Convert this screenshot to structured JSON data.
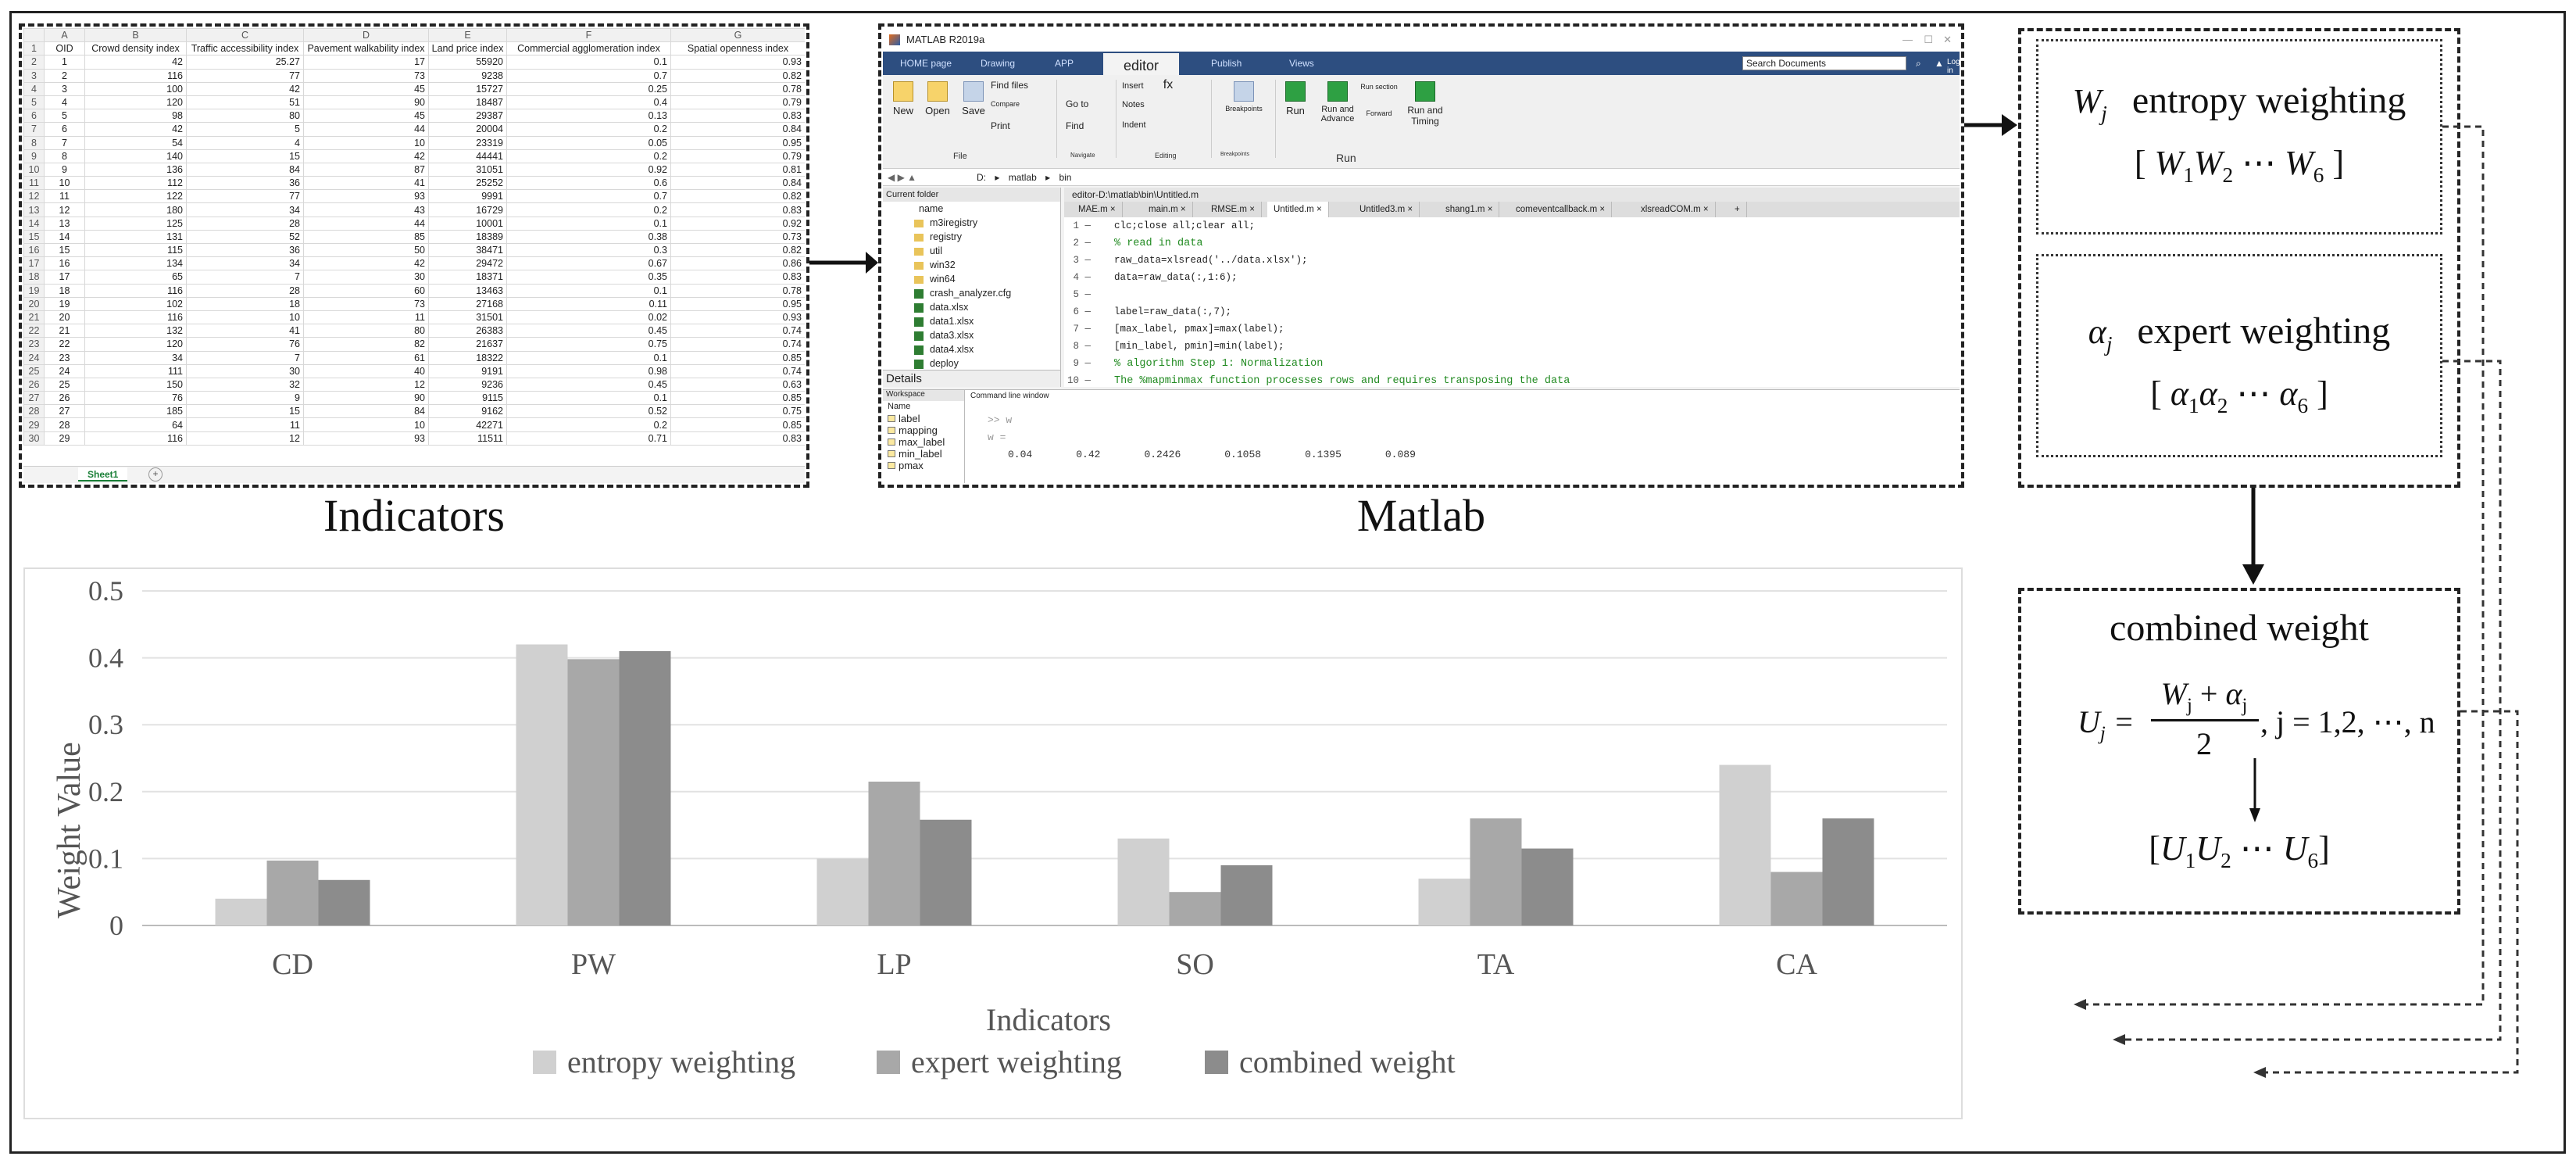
{
  "labels": {
    "indicators": "Indicators",
    "matlab": "Matlab"
  },
  "spreadsheet": {
    "col_letters": [
      "A",
      "B",
      "C",
      "D",
      "E",
      "F",
      "G"
    ],
    "headers": [
      "OID",
      "Crowd density index",
      "Traffic accessibility index",
      "Pavement walkability index",
      "Land price index",
      "Commercial agglomeration index",
      "Spatial openness index"
    ],
    "rows": [
      [
        "1",
        "42",
        "25.27",
        "17",
        "55920",
        "0.1",
        "0.93"
      ],
      [
        "2",
        "116",
        "77",
        "73",
        "9238",
        "0.7",
        "0.82"
      ],
      [
        "3",
        "100",
        "42",
        "45",
        "15727",
        "0.25",
        "0.78"
      ],
      [
        "4",
        "120",
        "51",
        "90",
        "18487",
        "0.4",
        "0.79"
      ],
      [
        "5",
        "98",
        "80",
        "45",
        "29387",
        "0.13",
        "0.83"
      ],
      [
        "6",
        "42",
        "5",
        "44",
        "20004",
        "0.2",
        "0.84"
      ],
      [
        "7",
        "54",
        "4",
        "10",
        "23319",
        "0.05",
        "0.95"
      ],
      [
        "8",
        "140",
        "15",
        "42",
        "44441",
        "0.2",
        "0.79"
      ],
      [
        "9",
        "136",
        "84",
        "87",
        "31051",
        "0.92",
        "0.81"
      ],
      [
        "10",
        "112",
        "36",
        "41",
        "25252",
        "0.6",
        "0.84"
      ],
      [
        "11",
        "122",
        "77",
        "93",
        "9991",
        "0.7",
        "0.82"
      ],
      [
        "12",
        "180",
        "34",
        "43",
        "16729",
        "0.2",
        "0.83"
      ],
      [
        "13",
        "125",
        "28",
        "44",
        "10001",
        "0.1",
        "0.92"
      ],
      [
        "14",
        "131",
        "52",
        "85",
        "18389",
        "0.38",
        "0.73"
      ],
      [
        "15",
        "115",
        "36",
        "50",
        "38471",
        "0.3",
        "0.82"
      ],
      [
        "16",
        "134",
        "34",
        "42",
        "29472",
        "0.67",
        "0.86"
      ],
      [
        "17",
        "65",
        "7",
        "30",
        "18371",
        "0.35",
        "0.83"
      ],
      [
        "18",
        "116",
        "28",
        "60",
        "13463",
        "0.1",
        "0.78"
      ],
      [
        "19",
        "102",
        "18",
        "73",
        "27168",
        "0.11",
        "0.95"
      ],
      [
        "20",
        "116",
        "10",
        "11",
        "31501",
        "0.02",
        "0.93"
      ],
      [
        "21",
        "132",
        "41",
        "80",
        "26383",
        "0.45",
        "0.74"
      ],
      [
        "22",
        "120",
        "76",
        "82",
        "21637",
        "0.75",
        "0.74"
      ],
      [
        "23",
        "34",
        "7",
        "61",
        "18322",
        "0.1",
        "0.85"
      ],
      [
        "24",
        "111",
        "30",
        "40",
        "9191",
        "0.98",
        "0.74"
      ],
      [
        "25",
        "150",
        "32",
        "12",
        "9236",
        "0.45",
        "0.63"
      ],
      [
        "26",
        "76",
        "9",
        "90",
        "9115",
        "0.1",
        "0.85"
      ],
      [
        "27",
        "185",
        "15",
        "84",
        "9162",
        "0.52",
        "0.75"
      ],
      [
        "28",
        "64",
        "11",
        "10",
        "42271",
        "0.2",
        "0.85"
      ],
      [
        "29",
        "116",
        "12",
        "93",
        "11511",
        "0.71",
        "0.83"
      ]
    ],
    "row_numbers": [
      "1",
      "2",
      "3",
      "4",
      "5",
      "6",
      "7",
      "8",
      "9",
      "10",
      "11",
      "12",
      "13",
      "14",
      "15",
      "16",
      "17",
      "18",
      "19",
      "20",
      "21",
      "22",
      "23",
      "24",
      "25",
      "26",
      "27",
      "28",
      "29",
      "30"
    ],
    "sheet_tab": "Sheet1",
    "add_sheet": "+"
  },
  "matlab": {
    "title": "MATLAB R2019a",
    "tabs": [
      "HOME page",
      "Drawing",
      "APP",
      "editor",
      "Publish",
      "Views"
    ],
    "search_placeholder": "Search Documents",
    "login": "Log in",
    "ribbon": {
      "new": "New",
      "open": "Open",
      "save": "Save",
      "find_files": "Find files",
      "compare": "Compare",
      "print": "Print",
      "go_to": "Go to",
      "find": "Find",
      "insert": "Insert",
      "fx": "fx",
      "notes": "Notes",
      "indent": "Indent",
      "breakpoints": "Breakpoints",
      "run": "Run",
      "run_advance": "Run and Advance",
      "run_section": "Run section",
      "forward": "Forward",
      "run_timing": "Run and Timing",
      "groups": [
        "File",
        "Navigate",
        "Editing",
        "Breakpoints",
        "Run"
      ]
    },
    "address": [
      "D:",
      "matlab",
      "bin"
    ],
    "current_folder": "Current folder",
    "name_col": "name",
    "files": [
      "m3iregistry",
      "registry",
      "util",
      "win32",
      "win64",
      "crash_analyzer.cfg",
      "data.xlsx",
      "data1.xlsx",
      "data3.xlsx",
      "data4.xlsx",
      "deploy"
    ],
    "details": "Details",
    "editor_title": "editor-D:\\matlab\\bin\\Untitled.m",
    "editor_tabs": [
      "MAE.m",
      "main.m",
      "RMSE.m",
      "Untitled.m",
      "Untitled3.m",
      "shang1.m",
      "comeventcallback.m",
      "xlsreadCOM.m",
      "+"
    ],
    "code": [
      {
        "n": "1",
        "t": "clc;close all;clear all;"
      },
      {
        "n": "2",
        "t": "% read in data"
      },
      {
        "n": "3",
        "t": "raw_data=xlsread('../data.xlsx');"
      },
      {
        "n": "4",
        "t": "data=raw_data(:,1:6);"
      },
      {
        "n": "5",
        "t": ""
      },
      {
        "n": "6",
        "t": "label=raw_data(:,7);"
      },
      {
        "n": "7",
        "t": "[max_label, pmax]=max(label);"
      },
      {
        "n": "8",
        "t": "[min_label, pmin]=min(label);"
      },
      {
        "n": "9",
        "t": "% algorithm Step 1: Normalization"
      },
      {
        "n": "10",
        "t": "The %mapminmax function processes rows and requires transposing the data"
      }
    ],
    "workspace": "Workspace",
    "ws_name": "Name",
    "ws_vars": [
      "label",
      "mapping",
      "max_label",
      "min_label",
      "pmax"
    ],
    "cmd_title": "Command line window",
    "cmd_prompt": ">> w",
    "cmd_echo": "w =",
    "cmd_values": [
      "0.04",
      "0.42",
      "0.2426",
      "0.1058",
      "0.1395",
      "0.089"
    ]
  },
  "weights": {
    "entropy": {
      "symbol": "W",
      "sub": "j",
      "label": "entropy weighting",
      "vec_open": "[",
      "vec_items": [
        "W",
        "W",
        "W"
      ],
      "vec_subs": [
        "1",
        "2",
        "6"
      ],
      "vec_close": "]"
    },
    "expert": {
      "symbol": "α",
      "sub": "j",
      "label": "expert weighting",
      "vec_items": [
        "α",
        "α",
        "α"
      ],
      "vec_subs": [
        "1",
        "2",
        "6"
      ]
    },
    "combined": {
      "title": "combined weight",
      "formula_lhs": "U",
      "formula_lhs_sub": "j",
      "num_a": "W",
      "num_a_sub": "j",
      "plus": "+",
      "num_b": "α",
      "num_b_sub": "j",
      "den": "2",
      "tail": ", j = 1,2, ⋯, n",
      "vec_items": [
        "U",
        "U",
        "U"
      ],
      "vec_subs": [
        "1",
        "2",
        "6"
      ]
    }
  },
  "chart_data": {
    "type": "bar",
    "categories": [
      "CD",
      "PW",
      "LP",
      "SO",
      "TA",
      "CA"
    ],
    "series": [
      {
        "name": "entropy weighting",
        "values": [
          0.04,
          0.42,
          0.1,
          0.13,
          0.07,
          0.24
        ],
        "color": "#d0d0d0"
      },
      {
        "name": "expert weighting",
        "values": [
          0.097,
          0.398,
          0.215,
          0.05,
          0.16,
          0.08
        ],
        "color": "#a8a8a8"
      },
      {
        "name": "combined weight",
        "values": [
          0.068,
          0.41,
          0.158,
          0.09,
          0.115,
          0.16
        ],
        "color": "#8c8c8c"
      }
    ],
    "yticks": [
      "0",
      "0.1",
      "0.2",
      "0.3",
      "0.4",
      "0.5"
    ],
    "ylim": [
      0,
      0.5
    ],
    "xlabel": "Indicators",
    "ylabel": "Weight Value",
    "grid": true,
    "legend": "bottom"
  }
}
